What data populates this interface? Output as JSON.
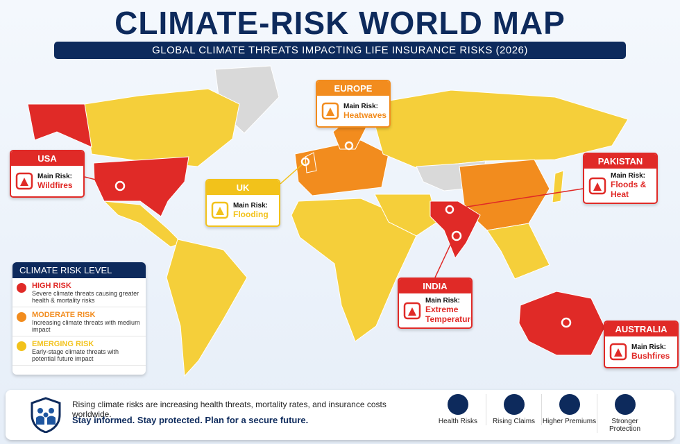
{
  "title": "CLIMATE-RISK WORLD MAP",
  "subtitle": "GLOBAL CLIMATE THREATS IMPACTING LIFE INSURANCE RISKS (2026)",
  "callouts": [
    {
      "region": "USA",
      "label": "Main Risk:",
      "risk": "Wildfires",
      "color": "#e02a27"
    },
    {
      "region": "UK",
      "label": "Main Risk:",
      "risk": "Flooding",
      "color": "#f2c21b"
    },
    {
      "region": "EUROPE",
      "label": "Main Risk:",
      "risk": "Heatwaves",
      "color": "#f28c1e"
    },
    {
      "region": "PAKISTAN",
      "label": "Main Risk:",
      "risk": "Floods & Heat",
      "color": "#e02a27"
    },
    {
      "region": "INDIA",
      "label": "Main Risk:",
      "risk": "Extreme Temperatures",
      "color": "#e02a27"
    },
    {
      "region": "AUSTRALIA",
      "label": "Main Risk:",
      "risk": "Bushfires",
      "color": "#e02a27"
    }
  ],
  "legend": {
    "title": "CLIMATE RISK LEVEL",
    "items": [
      {
        "name": "HIGH RISK",
        "description": "Severe climate threats causing greater health & mortality risks",
        "color": "#e02a27"
      },
      {
        "name": "MODERATE RISK",
        "description": "Increasing climate threats with medium impact",
        "color": "#f28c1e"
      },
      {
        "name": "EMERGING RISK",
        "description": "Early-stage climate threats with potential future impact",
        "color": "#f2c21b"
      }
    ]
  },
  "footer": {
    "message": "Rising climate risks are increasing health threats, mortality rates, and insurance costs worldwide.",
    "tagline": "Stay informed. Stay protected. Plan for a secure future.",
    "icons": [
      {
        "label": "Health Risks"
      },
      {
        "label": "Rising Claims"
      },
      {
        "label": "Higher Premiums"
      },
      {
        "label": "Stronger Protection"
      }
    ]
  }
}
